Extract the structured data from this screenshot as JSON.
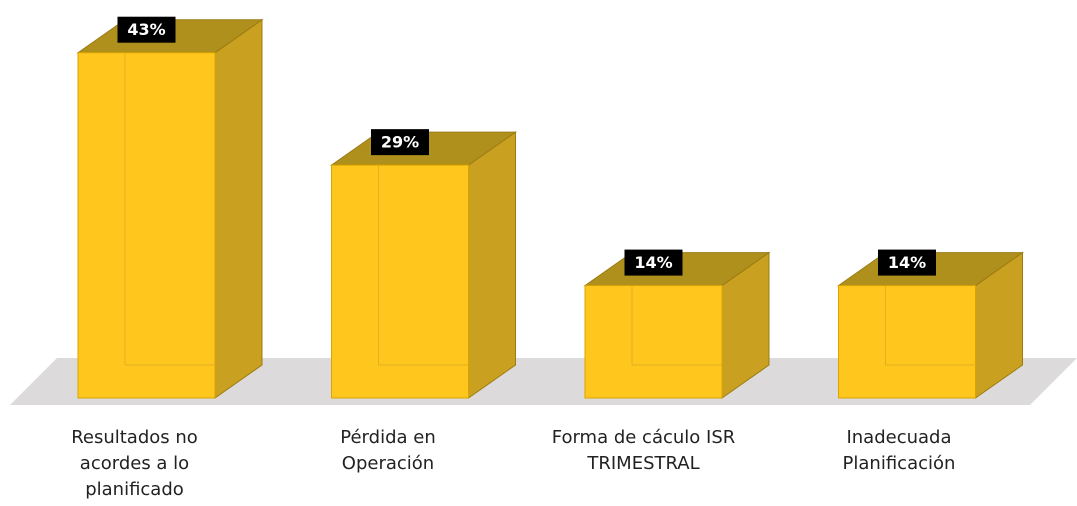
{
  "chart_data": {
    "type": "bar3d",
    "categories": [
      "Resultados no acordes a lo planificado",
      "Pérdida en Operación",
      "Forma de cáculo ISR TRIMESTRAL",
      "Inadecuada Planificación"
    ],
    "values": [
      43,
      29,
      14,
      14
    ],
    "value_labels": [
      "43%",
      "29%",
      "14%",
      "14%"
    ],
    "color": "#FFC61E"
  }
}
